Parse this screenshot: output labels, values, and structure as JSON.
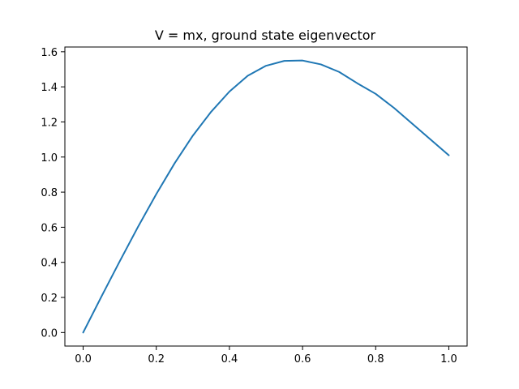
{
  "chart_data": {
    "type": "line",
    "title": "V = mx, ground state eigenvector",
    "xlabel": "",
    "ylabel": "",
    "xlim": [
      -0.05,
      1.05
    ],
    "ylim": [
      -0.077,
      1.627
    ],
    "grid": false,
    "x_ticks": [
      0.0,
      0.2,
      0.4,
      0.6,
      0.8,
      1.0
    ],
    "x_tick_labels": [
      "0.0",
      "0.2",
      "0.4",
      "0.6",
      "0.8",
      "1.0"
    ],
    "y_ticks": [
      0.0,
      0.2,
      0.4,
      0.6,
      0.8,
      1.0,
      1.2,
      1.4,
      1.6
    ],
    "y_tick_labels": [
      "0.0",
      "0.2",
      "0.4",
      "0.6",
      "0.8",
      "1.0",
      "1.2",
      "1.4",
      "1.6"
    ],
    "series": [
      {
        "color": "#1f77b4",
        "x": [
          0.0,
          0.05,
          0.1,
          0.15,
          0.2,
          0.25,
          0.3,
          0.35,
          0.4,
          0.45,
          0.5,
          0.55,
          0.6,
          0.65,
          0.7,
          0.75,
          0.8,
          0.85,
          0.9,
          0.95,
          1.0
        ],
        "y": [
          0.0,
          0.205,
          0.406,
          0.602,
          0.789,
          0.964,
          1.122,
          1.258,
          1.373,
          1.463,
          1.52,
          1.548,
          1.55,
          1.528,
          1.485,
          1.42,
          1.36,
          1.28,
          1.19,
          1.1,
          1.01
        ]
      }
    ]
  }
}
